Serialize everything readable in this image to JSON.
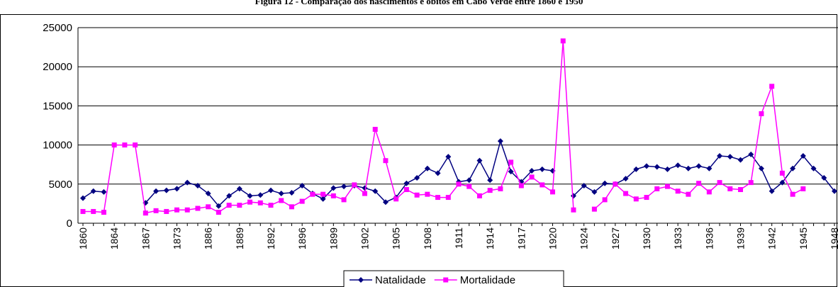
{
  "chart_data": {
    "type": "line",
    "title": "Figura 12 - Comparação dos nascimentos e óbitos em Cabo Verde entre 1860 e 1950",
    "categories": [
      "1860",
      null,
      null,
      "1864",
      null,
      null,
      "1867",
      null,
      null,
      "1873",
      null,
      null,
      "1886",
      null,
      null,
      "1889",
      null,
      null,
      "1892",
      null,
      null,
      "1896",
      null,
      null,
      "1899",
      null,
      null,
      "1902",
      null,
      null,
      "1905",
      null,
      null,
      "1908",
      null,
      null,
      "1911",
      null,
      null,
      "1914",
      null,
      null,
      "1917",
      null,
      null,
      "1920",
      null,
      null,
      "1924",
      null,
      null,
      "1927",
      null,
      null,
      "1930",
      null,
      null,
      "1933",
      null,
      null,
      "1936",
      null,
      null,
      "1939",
      null,
      null,
      "1942",
      null,
      null,
      "1945",
      null,
      null,
      "1948"
    ],
    "series": [
      {
        "name": "Natalidade",
        "color": "#000080",
        "marker": "diamond",
        "values": [
          3200,
          4100,
          4000,
          null,
          null,
          null,
          2600,
          4100,
          4200,
          4400,
          5200,
          4800,
          3800,
          2200,
          3500,
          4400,
          3500,
          3600,
          4200,
          3800,
          3900,
          4800,
          3800,
          3100,
          4500,
          4700,
          4800,
          4500,
          4100,
          2700,
          3300,
          5100,
          5800,
          7000,
          6400,
          8500,
          5300,
          5500,
          8000,
          5500,
          10500,
          6600,
          5300,
          6700,
          6900,
          6700,
          null,
          3500,
          4800,
          4000,
          5100,
          5000,
          5700,
          6900,
          7300,
          7200,
          6900,
          7400,
          7000,
          7300,
          7000,
          8600,
          8500,
          8100,
          8800,
          7000,
          4100,
          5200,
          7000,
          8600,
          7000,
          5800,
          4100
        ]
      },
      {
        "name": "Mortalidade",
        "color": "#ff00ff",
        "marker": "square",
        "values": [
          1500,
          1500,
          1400,
          10000,
          10000,
          10000,
          1300,
          1600,
          1500,
          1700,
          1700,
          1900,
          2100,
          1400,
          2300,
          2300,
          2700,
          2600,
          2300,
          2900,
          2100,
          2800,
          3700,
          3700,
          3500,
          3000,
          4900,
          3800,
          12000,
          8000,
          3100,
          4300,
          3600,
          3700,
          3300,
          3300,
          5000,
          4700,
          3500,
          4200,
          4400,
          7800,
          4800,
          5900,
          4900,
          4000,
          23300,
          1700,
          null,
          1800,
          3000,
          5000,
          3800,
          3100,
          3300,
          4400,
          4700,
          4100,
          3700,
          5100,
          4000,
          5200,
          4400,
          4300,
          5200,
          14000,
          17500,
          6400,
          3700,
          4400,
          null,
          null,
          null
        ]
      }
    ],
    "ylim": [
      0,
      25000
    ],
    "yticks": [
      0,
      5000,
      10000,
      15000,
      20000,
      25000
    ],
    "grid": true,
    "legend": "bottom"
  }
}
